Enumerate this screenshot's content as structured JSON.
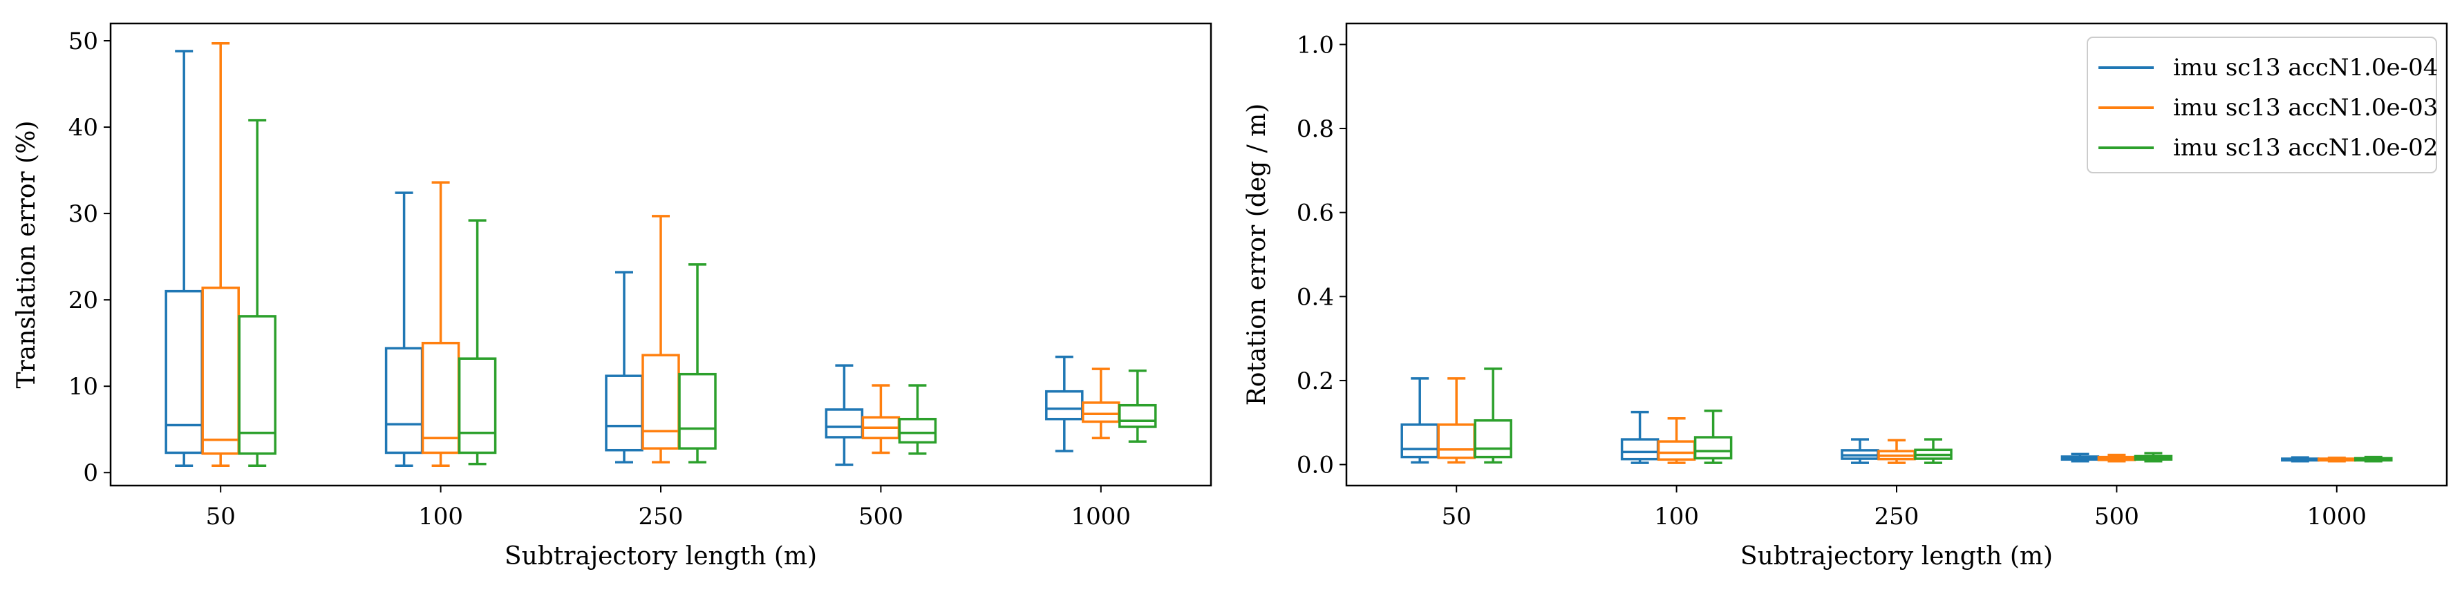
{
  "colors": {
    "s1": "#1f77b4",
    "s2": "#ff7f0e",
    "s3": "#2ca02c",
    "axis": "#000000"
  },
  "legend_labels": [
    "imu sc13 accN1.0e-04",
    "imu sc13 accN1.0e-03",
    "imu sc13 accN1.0e-02"
  ],
  "chart_data": [
    {
      "type": "box",
      "title": "",
      "xlabel": "Subtrajectory length (m)",
      "ylabel": "Translation error (%)",
      "categories": [
        "50",
        "100",
        "250",
        "500",
        "1000"
      ],
      "ylim": [
        -1.5,
        52
      ],
      "yticks": [
        0,
        10,
        20,
        30,
        40,
        50
      ],
      "grid": false,
      "legend": "none",
      "series": [
        {
          "name": "imu sc13 accN1.0e-04",
          "color": "#1f77b4",
          "boxes": [
            {
              "whislo": 0.8,
              "q1": 2.3,
              "med": 5.5,
              "q3": 21.0,
              "whishi": 48.8
            },
            {
              "whislo": 0.8,
              "q1": 2.3,
              "med": 5.6,
              "q3": 14.4,
              "whishi": 32.4
            },
            {
              "whislo": 1.2,
              "q1": 2.6,
              "med": 5.4,
              "q3": 11.2,
              "whishi": 23.2
            },
            {
              "whislo": 0.9,
              "q1": 4.1,
              "med": 5.3,
              "q3": 7.3,
              "whishi": 12.4
            },
            {
              "whislo": 2.5,
              "q1": 6.2,
              "med": 7.4,
              "q3": 9.4,
              "whishi": 13.4
            }
          ]
        },
        {
          "name": "imu sc13 accN1.0e-03",
          "color": "#ff7f0e",
          "boxes": [
            {
              "whislo": 0.8,
              "q1": 2.2,
              "med": 3.8,
              "q3": 21.4,
              "whishi": 49.7
            },
            {
              "whislo": 0.8,
              "q1": 2.3,
              "med": 4.0,
              "q3": 15.0,
              "whishi": 33.6
            },
            {
              "whislo": 1.2,
              "q1": 2.8,
              "med": 4.8,
              "q3": 13.6,
              "whishi": 29.7
            },
            {
              "whislo": 2.3,
              "q1": 4.0,
              "med": 5.2,
              "q3": 6.4,
              "whishi": 10.1
            },
            {
              "whislo": 4.0,
              "q1": 5.9,
              "med": 6.8,
              "q3": 8.1,
              "whishi": 12.0
            }
          ]
        },
        {
          "name": "imu sc13 accN1.0e-02",
          "color": "#2ca02c",
          "boxes": [
            {
              "whislo": 0.8,
              "q1": 2.2,
              "med": 4.6,
              "q3": 18.1,
              "whishi": 40.8
            },
            {
              "whislo": 1.0,
              "q1": 2.3,
              "med": 4.6,
              "q3": 13.2,
              "whishi": 29.2
            },
            {
              "whislo": 1.2,
              "q1": 2.8,
              "med": 5.1,
              "q3": 11.4,
              "whishi": 24.1
            },
            {
              "whislo": 2.2,
              "q1": 3.5,
              "med": 4.6,
              "q3": 6.2,
              "whishi": 10.1
            },
            {
              "whislo": 3.6,
              "q1": 5.3,
              "med": 6.0,
              "q3": 7.8,
              "whishi": 11.8
            }
          ]
        }
      ]
    },
    {
      "type": "box",
      "title": "",
      "xlabel": "Subtrajectory length (m)",
      "ylabel": "Rotation error (deg / m)",
      "categories": [
        "50",
        "100",
        "250",
        "500",
        "1000"
      ],
      "ylim": [
        -0.05,
        1.05
      ],
      "yticks": [
        0.0,
        0.2,
        0.4,
        0.6,
        0.8,
        1.0
      ],
      "grid": false,
      "legend": "top-right",
      "series": [
        {
          "name": "imu sc13 accN1.0e-04",
          "color": "#1f77b4",
          "boxes": [
            {
              "whislo": 0.005,
              "q1": 0.018,
              "med": 0.037,
              "q3": 0.095,
              "whishi": 0.205
            },
            {
              "whislo": 0.004,
              "q1": 0.013,
              "med": 0.03,
              "q3": 0.06,
              "whishi": 0.125
            },
            {
              "whislo": 0.004,
              "q1": 0.014,
              "med": 0.022,
              "q3": 0.034,
              "whishi": 0.06
            },
            {
              "whislo": 0.008,
              "q1": 0.012,
              "med": 0.015,
              "q3": 0.019,
              "whishi": 0.025
            },
            {
              "whislo": 0.008,
              "q1": 0.01,
              "med": 0.012,
              "q3": 0.014,
              "whishi": 0.017
            }
          ]
        },
        {
          "name": "imu sc13 accN1.0e-03",
          "color": "#ff7f0e",
          "boxes": [
            {
              "whislo": 0.005,
              "q1": 0.016,
              "med": 0.036,
              "q3": 0.095,
              "whishi": 0.205
            },
            {
              "whislo": 0.004,
              "q1": 0.012,
              "med": 0.028,
              "q3": 0.055,
              "whishi": 0.11
            },
            {
              "whislo": 0.004,
              "q1": 0.013,
              "med": 0.021,
              "q3": 0.032,
              "whishi": 0.058
            },
            {
              "whislo": 0.008,
              "q1": 0.011,
              "med": 0.014,
              "q3": 0.018,
              "whishi": 0.023
            },
            {
              "whislo": 0.008,
              "q1": 0.01,
              "med": 0.012,
              "q3": 0.014,
              "whishi": 0.016
            }
          ]
        },
        {
          "name": "imu sc13 accN1.0e-02",
          "color": "#2ca02c",
          "boxes": [
            {
              "whislo": 0.005,
              "q1": 0.018,
              "med": 0.038,
              "q3": 0.105,
              "whishi": 0.228
            },
            {
              "whislo": 0.004,
              "q1": 0.015,
              "med": 0.032,
              "q3": 0.065,
              "whishi": 0.128
            },
            {
              "whislo": 0.004,
              "q1": 0.014,
              "med": 0.023,
              "q3": 0.035,
              "whishi": 0.06
            },
            {
              "whislo": 0.008,
              "q1": 0.012,
              "med": 0.016,
              "q3": 0.02,
              "whishi": 0.027
            },
            {
              "whislo": 0.008,
              "q1": 0.01,
              "med": 0.013,
              "q3": 0.015,
              "whishi": 0.018
            }
          ]
        }
      ]
    }
  ]
}
